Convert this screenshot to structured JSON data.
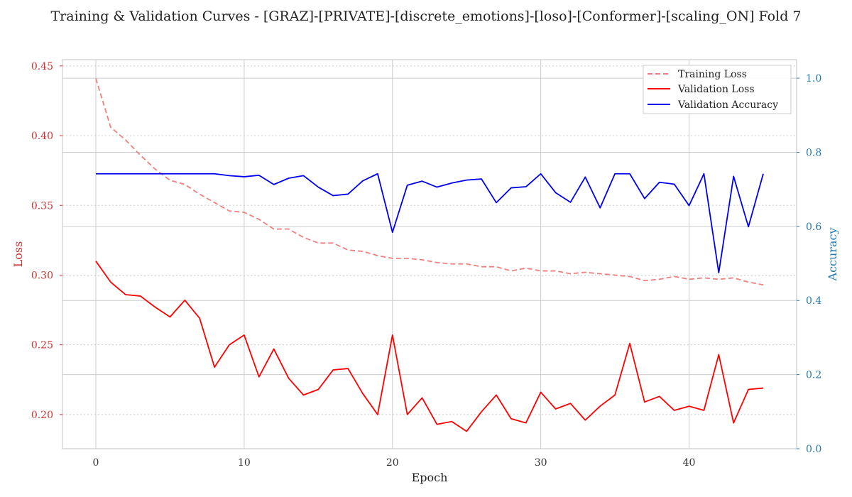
{
  "chart_data": {
    "type": "line",
    "title": "Training & Validation Curves - [GRAZ]-[PRIVATE]-[discrete_emotions]-[loso]-[Conformer]-[scaling_ON] Fold 7",
    "xlabel": "Epoch",
    "ylabel_left": "Loss",
    "ylabel_right": "Accuracy",
    "x": [
      0,
      1,
      2,
      3,
      4,
      5,
      6,
      7,
      8,
      9,
      10,
      11,
      12,
      13,
      14,
      15,
      16,
      17,
      18,
      19,
      20,
      21,
      22,
      23,
      24,
      25,
      26,
      27,
      28,
      29,
      30,
      31,
      32,
      33,
      34,
      35,
      36,
      37,
      38,
      39,
      40,
      41,
      42,
      43,
      44,
      45
    ],
    "xlim": [
      -2.25,
      47.25
    ],
    "xticks": [
      0,
      10,
      20,
      30,
      40
    ],
    "ylim_left": [
      0.1755,
      0.4545
    ],
    "yticks_left": [
      0.2,
      0.25,
      0.3,
      0.35,
      0.4,
      0.45
    ],
    "ylim_right": [
      0.0,
      1.05
    ],
    "yticks_right": [
      0.0,
      0.2,
      0.4,
      0.6,
      0.8,
      1.0
    ],
    "grid": true,
    "legend_position": "top-right",
    "colors": {
      "left_axis": "#cc3333",
      "right_axis": "#1f77b4",
      "grid": "#cccccc"
    },
    "series": [
      {
        "name": "Training Loss",
        "axis": "left",
        "style": "dashed",
        "color": "#f08080",
        "values": [
          0.441,
          0.406,
          0.397,
          0.386,
          0.376,
          0.368,
          0.365,
          0.358,
          0.352,
          0.346,
          0.345,
          0.34,
          0.333,
          0.333,
          0.327,
          0.323,
          0.323,
          0.318,
          0.317,
          0.314,
          0.312,
          0.312,
          0.311,
          0.309,
          0.308,
          0.308,
          0.306,
          0.306,
          0.303,
          0.305,
          0.303,
          0.303,
          0.301,
          0.302,
          0.301,
          0.3,
          0.299,
          0.296,
          0.297,
          0.299,
          0.297,
          0.298,
          0.297,
          0.298,
          0.295,
          0.293
        ]
      },
      {
        "name": "Validation Loss",
        "axis": "left",
        "style": "solid",
        "color": "#ff0000",
        "values": [
          0.31,
          0.295,
          0.286,
          0.285,
          0.277,
          0.27,
          0.282,
          0.269,
          0.234,
          0.25,
          0.257,
          0.227,
          0.247,
          0.226,
          0.214,
          0.218,
          0.232,
          0.233,
          0.215,
          0.2,
          0.257,
          0.2,
          0.212,
          0.193,
          0.195,
          0.188,
          0.202,
          0.214,
          0.197,
          0.194,
          0.216,
          0.204,
          0.208,
          0.196,
          0.206,
          0.214,
          0.251,
          0.209,
          0.213,
          0.203,
          0.206,
          0.203,
          0.243,
          0.194,
          0.218,
          0.219
        ]
      },
      {
        "name": "Validation Accuracy",
        "axis": "right",
        "style": "solid",
        "color": "#0000ee",
        "values": [
          0.742,
          0.742,
          0.742,
          0.742,
          0.742,
          0.742,
          0.742,
          0.742,
          0.742,
          0.737,
          0.734,
          0.738,
          0.713,
          0.73,
          0.737,
          0.706,
          0.683,
          0.687,
          0.723,
          0.742,
          0.584,
          0.711,
          0.722,
          0.706,
          0.717,
          0.725,
          0.728,
          0.664,
          0.704,
          0.707,
          0.742,
          0.691,
          0.665,
          0.733,
          0.65,
          0.742,
          0.742,
          0.675,
          0.719,
          0.714,
          0.656,
          0.742,
          0.475,
          0.735,
          0.599,
          0.742
        ]
      }
    ]
  }
}
